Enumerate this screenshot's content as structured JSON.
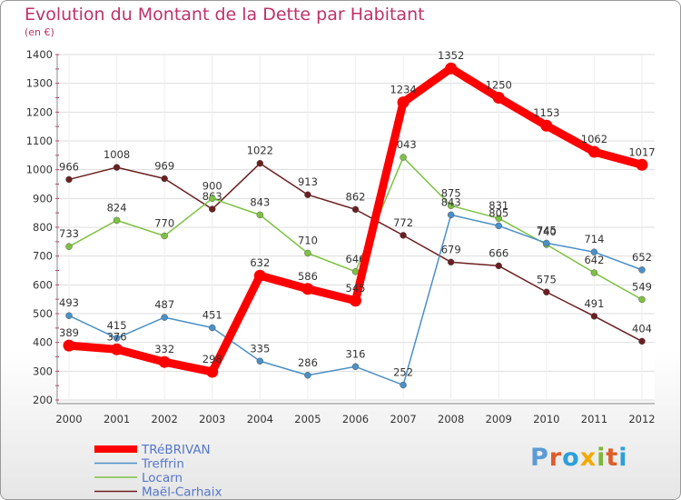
{
  "title": "Evolution du Montant de la Dette par Habitant",
  "subtitle": "(en €)",
  "logo": {
    "text": "Proxiti",
    "colors": [
      "#5b9bd5",
      "#e05c2a",
      "#2e9fd8",
      "#f2a900",
      "#7fb63a",
      "#e05c2a",
      "#2e9fd8"
    ]
  },
  "chart_data": {
    "type": "line",
    "x": [
      "2000",
      "2001",
      "2002",
      "2003",
      "2004",
      "2005",
      "2006",
      "2007",
      "2008",
      "2009",
      "2010",
      "2011",
      "2012"
    ],
    "ylim": [
      200,
      1400
    ],
    "yticks": [
      200,
      300,
      400,
      500,
      600,
      700,
      800,
      900,
      1000,
      1100,
      1200,
      1300,
      1400
    ],
    "grid": true,
    "legend_position": "bottom-left",
    "series": [
      {
        "name": "TRéBRIVAN",
        "color": "#ff0000",
        "values": [
          389,
          376,
          332,
          298,
          632,
          586,
          545,
          1234,
          1352,
          1250,
          1153,
          1062,
          1017
        ]
      },
      {
        "name": "Treffrin",
        "color": "#4a90c8",
        "values": [
          493,
          415,
          487,
          451,
          335,
          286,
          316,
          252,
          843,
          805,
          745,
          714,
          652
        ]
      },
      {
        "name": "Locarn",
        "color": "#7dc242",
        "values": [
          733,
          824,
          770,
          900,
          843,
          710,
          646,
          1043,
          875,
          831,
          740,
          642,
          549
        ]
      },
      {
        "name": "Maël-Carhaix",
        "color": "#6b1f1f",
        "values": [
          966,
          1008,
          969,
          863,
          1022,
          913,
          862,
          772,
          679,
          666,
          575,
          491,
          404
        ]
      }
    ]
  }
}
